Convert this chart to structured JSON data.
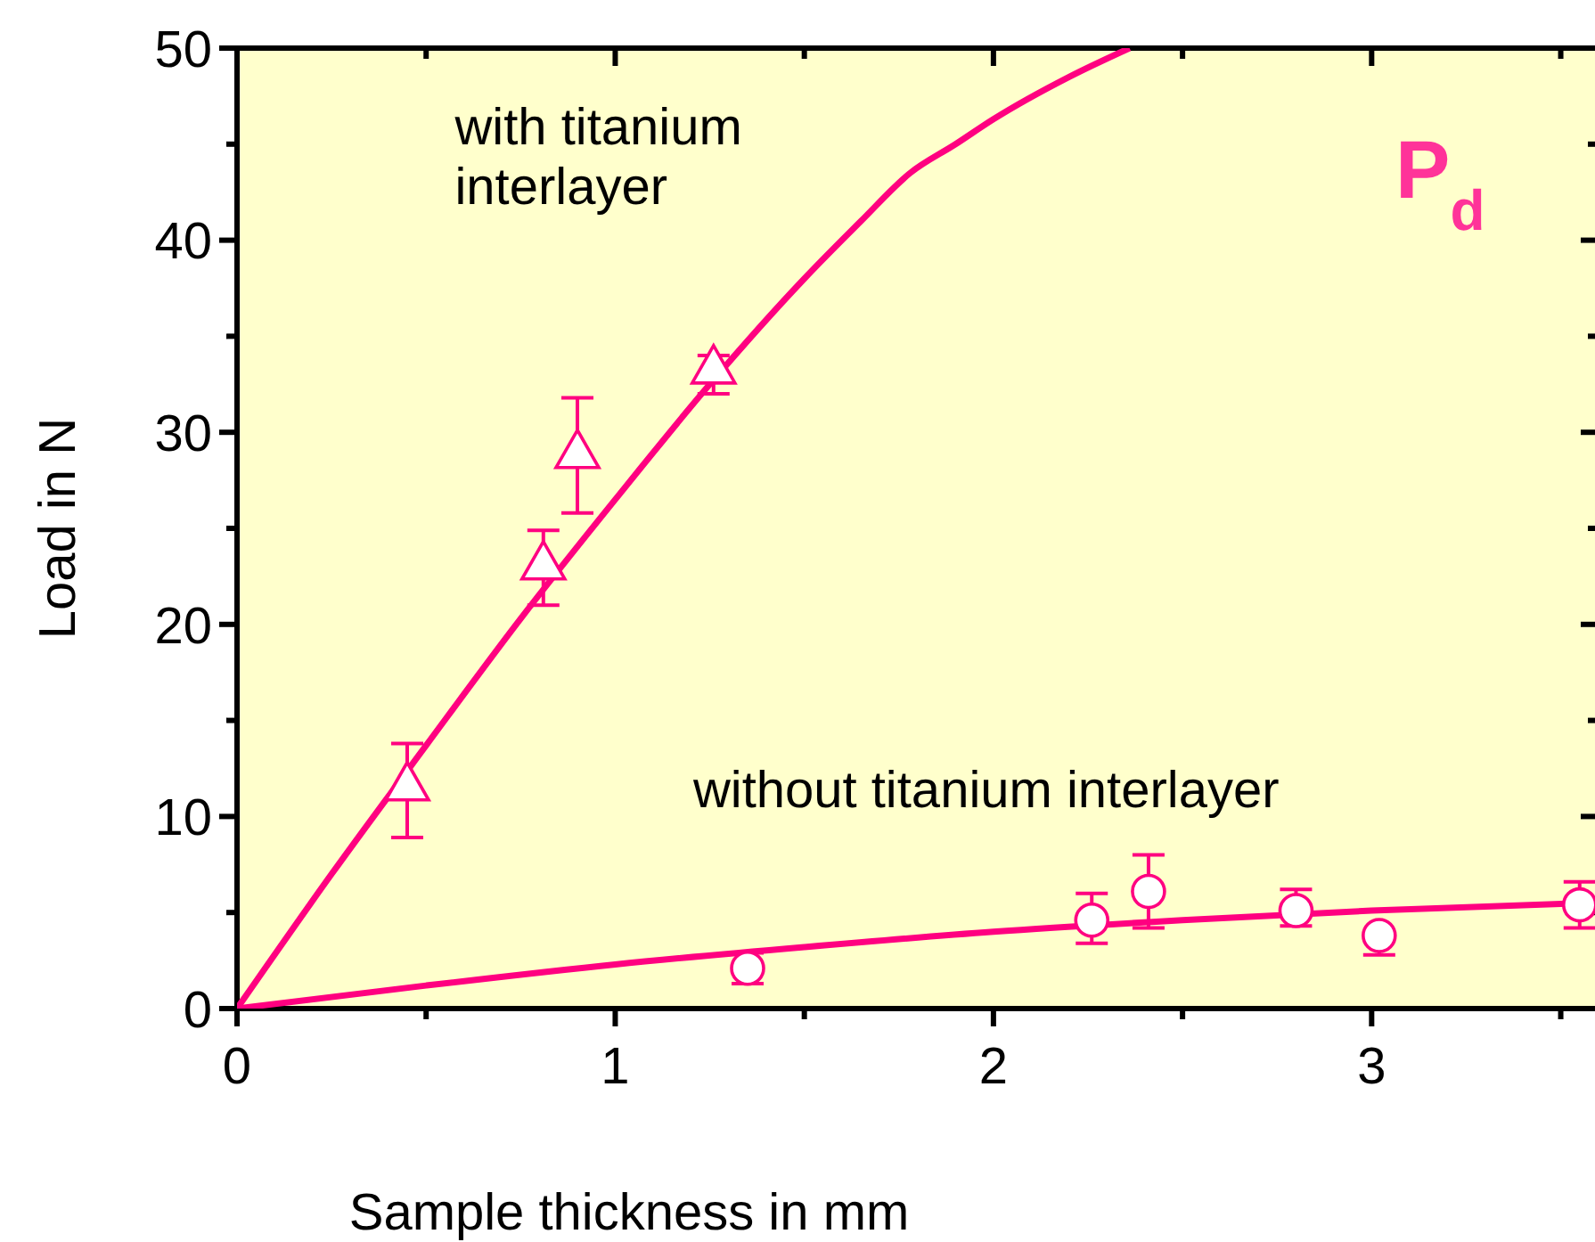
{
  "chart_data": {
    "type": "scatter",
    "xlabel": "Sample thickness in mm",
    "ylabel": "Load in N",
    "xlim": [
      0,
      3.6
    ],
    "ylim": [
      0,
      50
    ],
    "xticks": [
      0,
      {
        "value": 0.5,
        "label": null
      },
      1,
      {
        "value": 1.5,
        "label": null
      },
      2,
      {
        "value": 2.5,
        "label": null
      },
      3,
      {
        "value": 3.5,
        "label": null
      }
    ],
    "yticks": [
      0,
      {
        "value": 5,
        "label": null
      },
      10,
      {
        "value": 15,
        "label": null
      },
      20,
      {
        "value": 25,
        "label": null
      },
      30,
      {
        "value": 35,
        "label": null
      },
      40,
      {
        "value": 45,
        "label": null
      },
      50
    ],
    "grid": false,
    "annotations": [
      "P$_{d}$"
    ],
    "series": [
      {
        "type": "line",
        "color": "#ff0080",
        "line_style": "solid",
        "marker": "none",
        "x": [
          0,
          0.25,
          0.5,
          0.75,
          1,
          1.25,
          1.5,
          1.65,
          1.78,
          1.9,
          2,
          2.2,
          2.36
        ],
        "values": [
          0,
          7,
          13.7,
          20.3,
          26.5,
          32.5,
          38,
          41,
          43.5,
          45,
          46.3,
          48.5,
          50
        ]
      },
      {
        "type": "line",
        "color": "#ff0080",
        "line_style": "solid",
        "marker": "none",
        "x": [
          0,
          0.5,
          1,
          1.5,
          2,
          2.5,
          3,
          3.58
        ],
        "values": [
          0,
          1.2,
          2.3,
          3.2,
          4.0,
          4.6,
          5.1,
          5.5
        ]
      },
      {
        "name": "with titanium interlayer",
        "color": "#ff0080",
        "marker": "triangle",
        "x": [
          0.45,
          0.81,
          0.9,
          1.26
        ],
        "values": [
          11.7,
          23.2,
          29.0,
          33.4
        ],
        "errors": [
          [
            8.9,
            13.8
          ],
          [
            21.0,
            24.9
          ],
          [
            25.8,
            31.8
          ],
          [
            32.0,
            34.0
          ]
        ]
      },
      {
        "name": "without titanium interlayer",
        "color": "#ff0080",
        "marker": "circle",
        "x": [
          1.35,
          2.26,
          2.41,
          2.8,
          3.02,
          3.55
        ],
        "values": [
          2.1,
          4.6,
          6.1,
          5.1,
          3.8,
          5.4
        ],
        "errors": [
          [
            1.3,
            2.9
          ],
          [
            3.4,
            6.0
          ],
          [
            4.2,
            8.0
          ],
          [
            4.3,
            6.2
          ],
          [
            2.8,
            3.8
          ],
          [
            4.2,
            6.6
          ]
        ]
      }
    ]
  }
}
